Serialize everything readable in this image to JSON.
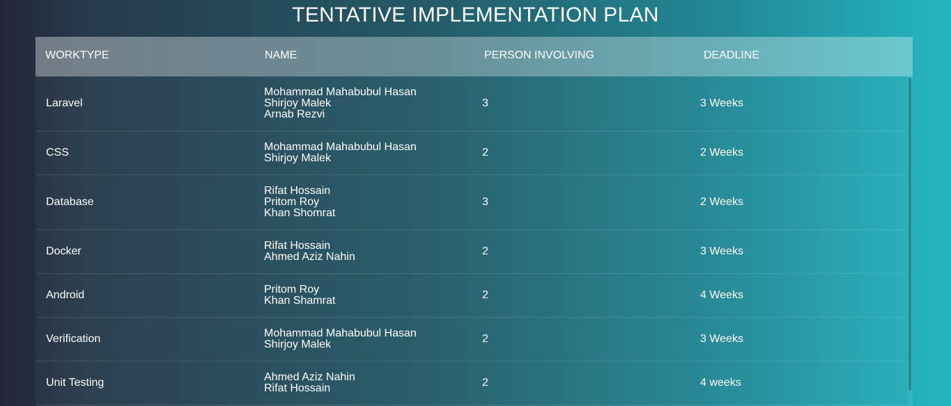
{
  "page": {
    "title": "TENTATIVE IMPLEMENTATION PLAN"
  },
  "table": {
    "headers": [
      "WORKTYPE",
      "NAME",
      "PERSON INVOLVING",
      "DEADLINE"
    ],
    "rows": [
      {
        "worktype": "Laravel",
        "names": [
          "Mohammad Mahabubul Hasan",
          "Shirjoy Malek",
          "Arnab Rezvi"
        ],
        "persons": "3",
        "deadline": "3 Weeks"
      },
      {
        "worktype": "CSS",
        "names": [
          "Mohammad Mahabubul Hasan",
          "Shirjoy Malek"
        ],
        "persons": "2",
        "deadline": "2 Weeks"
      },
      {
        "worktype": "Database",
        "names": [
          "Rifat Hossain",
          "Pritom Roy",
          "Khan Shomrat"
        ],
        "persons": "3",
        "deadline": "2 Weeks"
      },
      {
        "worktype": "Docker",
        "names": [
          "Rifat Hossain",
          "Ahmed Aziz Nahin"
        ],
        "persons": "2",
        "deadline": "3 Weeks"
      },
      {
        "worktype": "Android",
        "names": [
          "Pritom Roy",
          "Khan Shamrat"
        ],
        "persons": "2",
        "deadline": "4 Weeks"
      },
      {
        "worktype": "Verification",
        "names": [
          "Mohammad Mahabubul Hasan",
          "Shirjoy Malek"
        ],
        "persons": "2",
        "deadline": "3 Weeks"
      },
      {
        "worktype": "Unit Testing",
        "names": [
          "Ahmed Aziz Nahin",
          "Rifat Hossain"
        ],
        "persons": "2",
        "deadline": "4 weeks"
      }
    ]
  }
}
